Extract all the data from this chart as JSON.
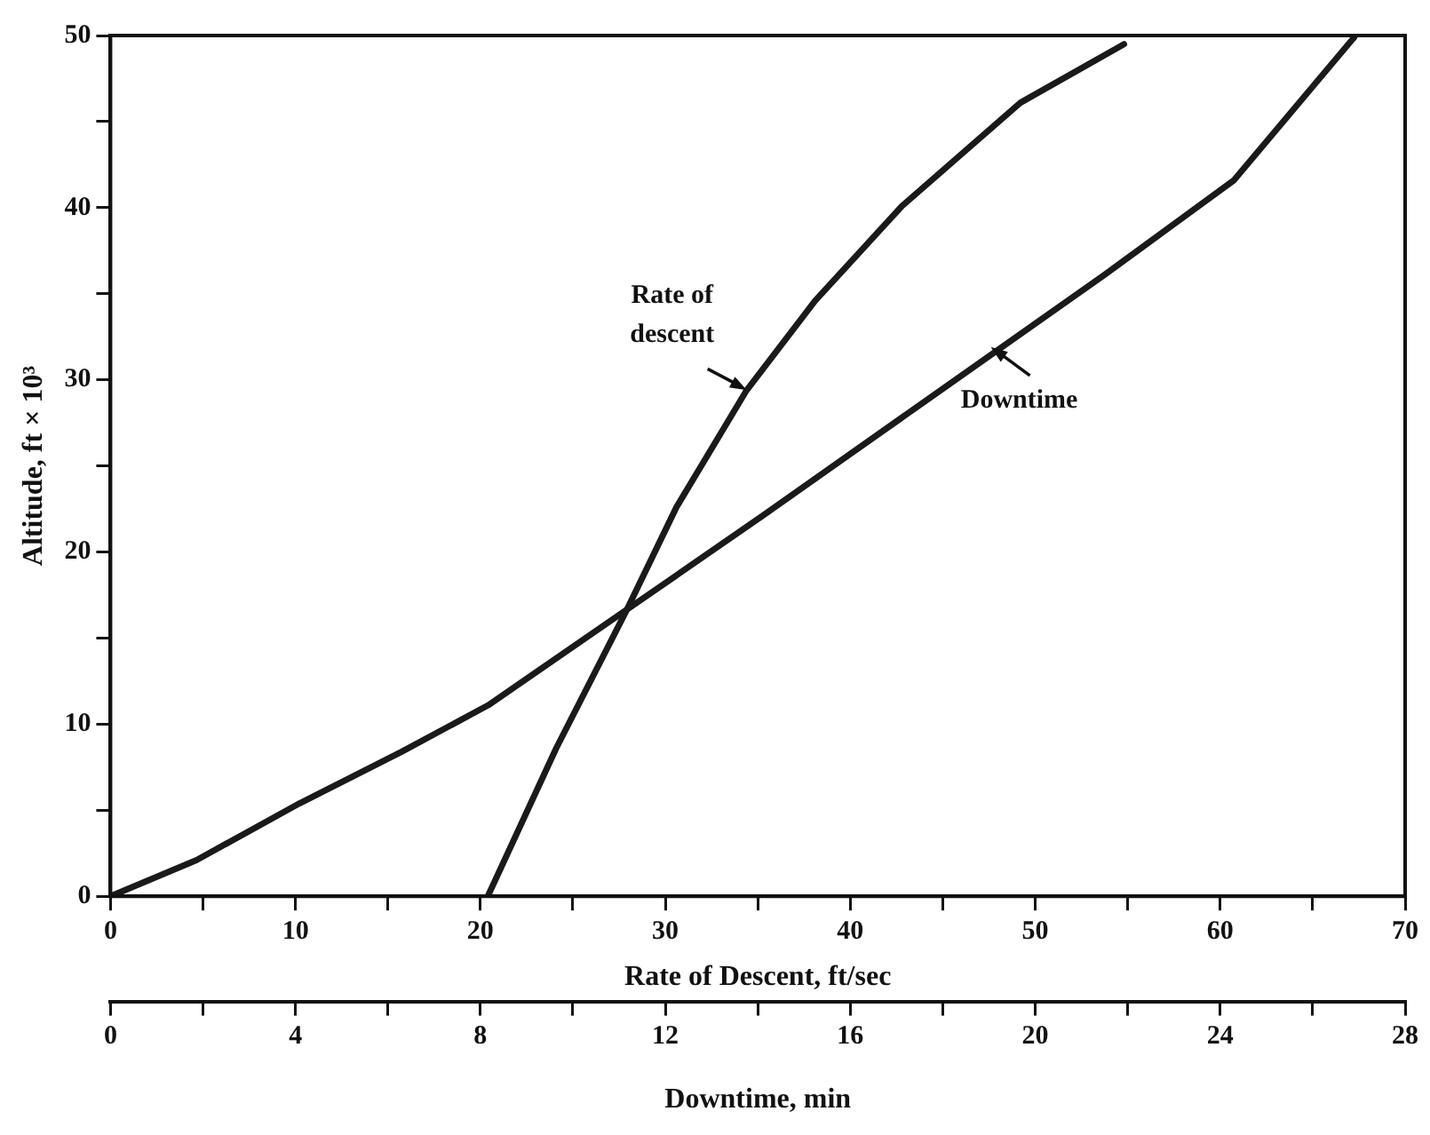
{
  "chart_data": {
    "type": "line",
    "xlabel": "Rate of Descent, ft/sec",
    "x2label": "Downtime, min",
    "ylabel": "Altitude, ft × 10³",
    "xlim": [
      0,
      70
    ],
    "xticks": [
      0,
      {
        "value": 5,
        "label": null
      },
      10,
      {
        "value": 15,
        "label": null
      },
      20,
      {
        "value": 25,
        "label": null
      },
      30,
      {
        "value": 35,
        "label": null
      },
      40,
      {
        "value": 45,
        "label": null
      },
      50,
      {
        "value": 55,
        "label": null
      },
      60,
      {
        "value": 65,
        "label": null
      },
      70
    ],
    "x2lim": [
      0,
      28
    ],
    "x2ticks": [
      0,
      {
        "value": 2,
        "label": null
      },
      4,
      {
        "value": 6,
        "label": null
      },
      8,
      {
        "value": 10,
        "label": null
      },
      12,
      {
        "value": 14,
        "label": null
      },
      16,
      {
        "value": 18,
        "label": null
      },
      20,
      {
        "value": 22,
        "label": null
      },
      24,
      {
        "value": 26,
        "label": null
      },
      28
    ],
    "ylim": [
      0,
      50
    ],
    "yticks": [
      0,
      {
        "value": 5,
        "label": null
      },
      10,
      {
        "value": 15,
        "label": null
      },
      20,
      {
        "value": 25,
        "label": null
      },
      30,
      {
        "value": 35,
        "label": null
      },
      40,
      {
        "value": 45,
        "label": null
      },
      50
    ],
    "grid": false,
    "legend": false,
    "marker": "none",
    "line_style": "solid",
    "series": [
      {
        "color": "#1a1a1a",
        "x": [
          20.4,
          24.1,
          27.9,
          30.6,
          34.4,
          38.1,
          42.8,
          49.2,
          54.8
        ],
        "values": [
          0,
          8.6,
          16.6,
          22.6,
          29.4,
          34.6,
          40.1,
          46.1,
          49.5
        ]
      },
      {
        "color": "#1a1a1a",
        "axis": "x2",
        "x": [
          0,
          1.86,
          4.09,
          6.3,
          8.17,
          11.14,
          14.1,
          17.8,
          21.5,
          24.3,
          26.9
        ],
        "values": [
          0,
          2.1,
          5.4,
          8.4,
          11.1,
          16.6,
          22.1,
          29.1,
          36.1,
          41.6,
          49.9
        ]
      }
    ],
    "annotations": [
      {
        "text": "Rate of\ndescent",
        "x": 34.4,
        "y": 29.4
      },
      {
        "text": "Downtime",
        "x": 47.6,
        "y": 31.9
      }
    ]
  }
}
